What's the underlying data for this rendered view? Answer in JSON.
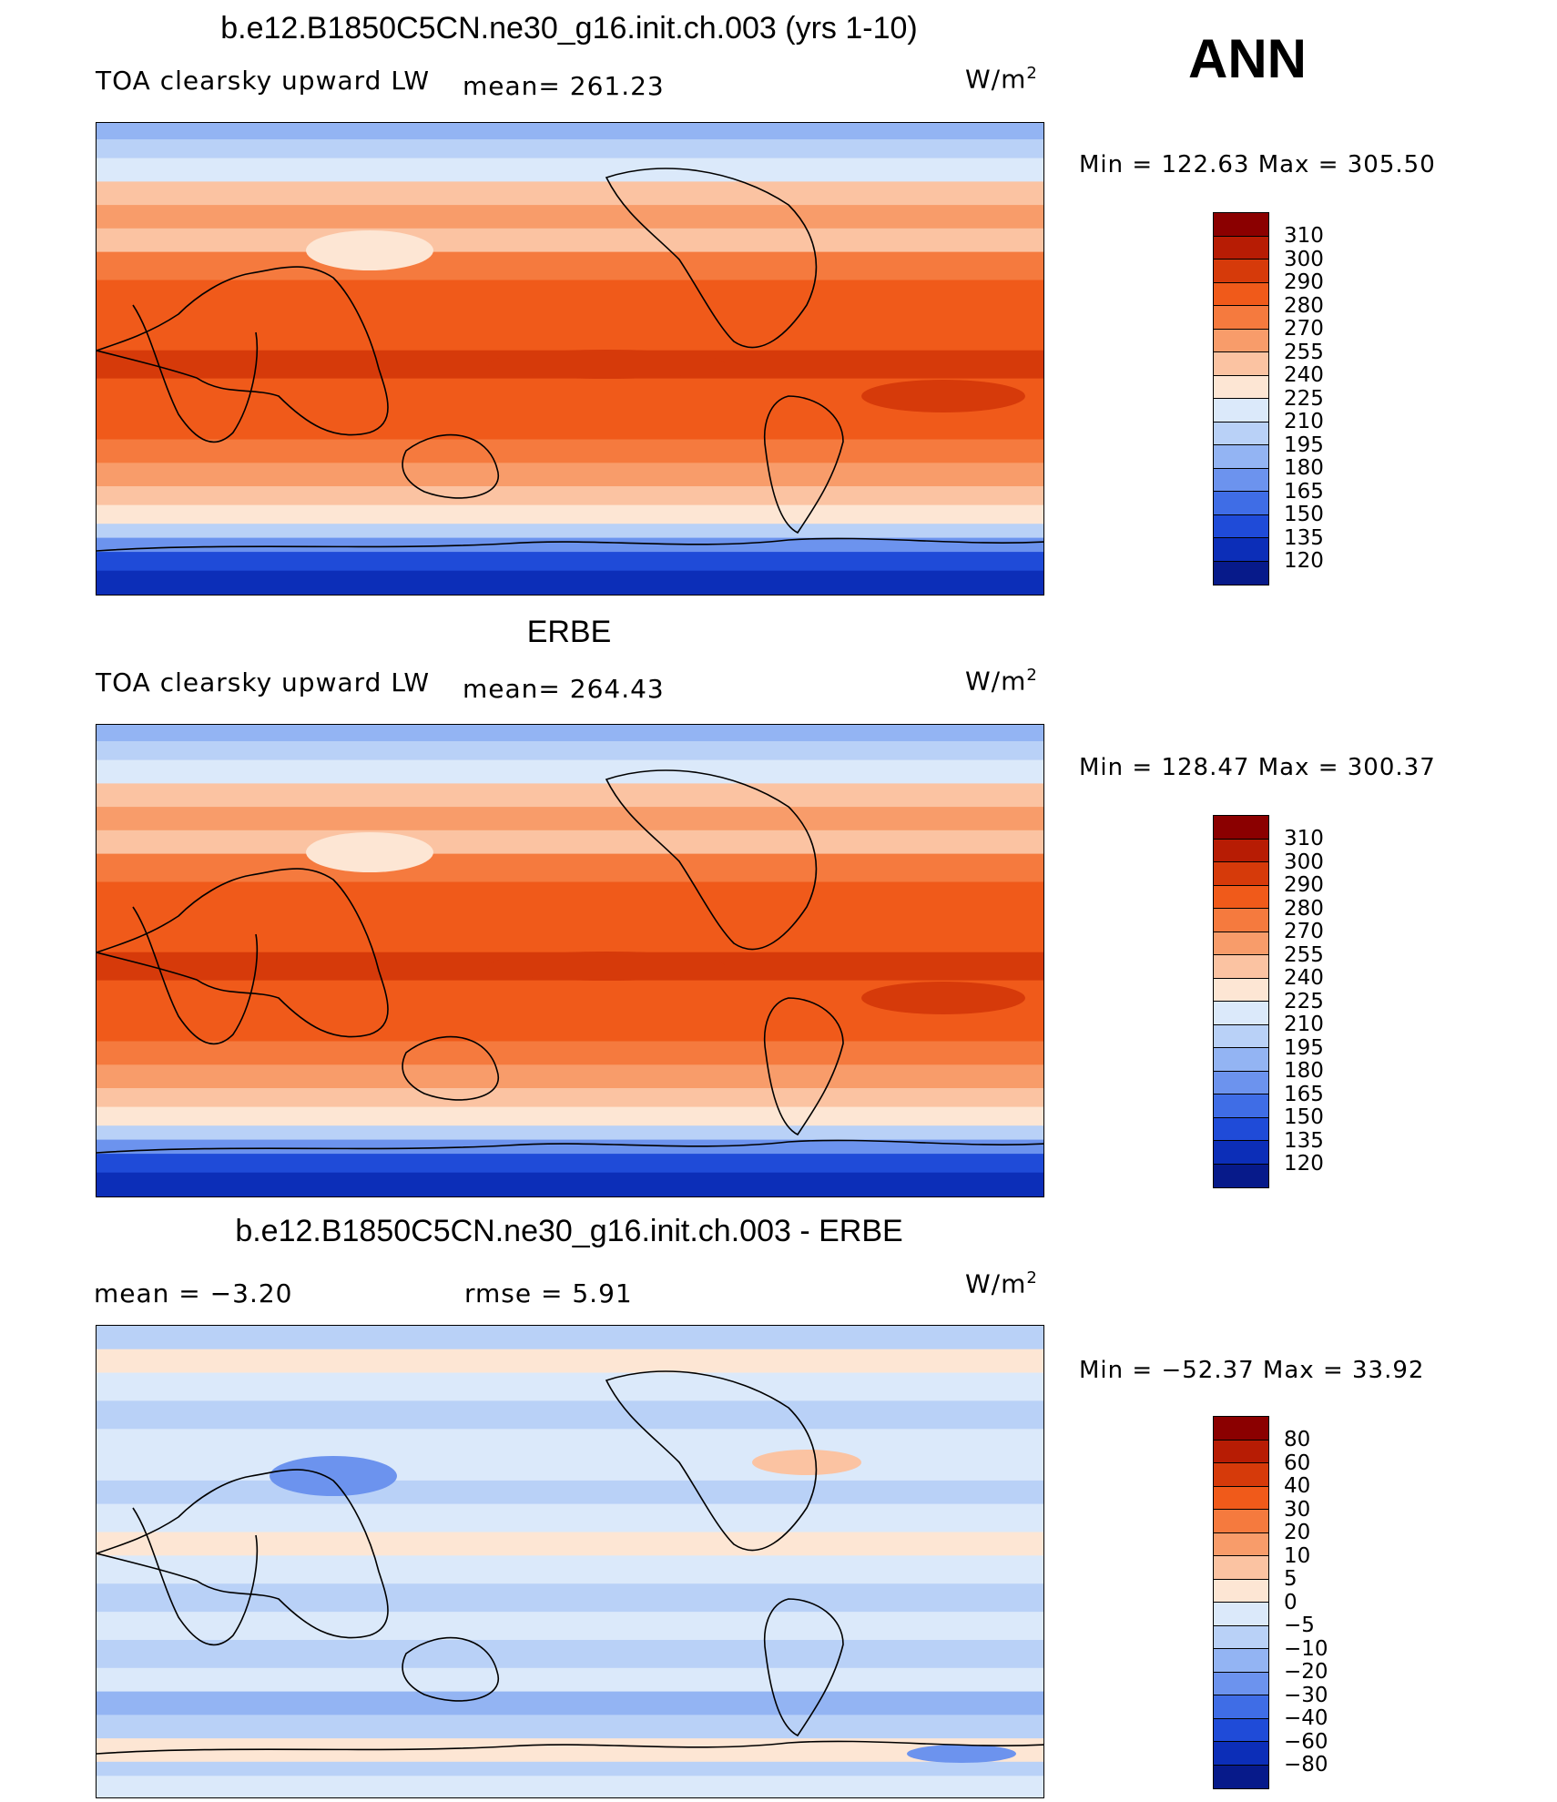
{
  "season_label": "ANN",
  "unit_base": "W/m",
  "unit_exp": "2",
  "panels": [
    {
      "title": "b.e12.B1850C5CN.ne30_g16.init.ch.003 (yrs 1-10)",
      "left_label": "TOA clearsky upward LW",
      "stat_label": "mean= 261.23",
      "minmax": "Min  =  122.63  Max  =  305.50",
      "kind": "abs",
      "levels": [
        "310",
        "300",
        "290",
        "280",
        "270",
        "255",
        "240",
        "225",
        "210",
        "195",
        "180",
        "165",
        "150",
        "135",
        "120"
      ],
      "colors": [
        "#8b0000",
        "#b71c04",
        "#d63a0a",
        "#f05a1a",
        "#f57a3e",
        "#f89c6a",
        "#fbc3a2",
        "#fde6d4",
        "#dbe9fa",
        "#b9d1f7",
        "#93b4f3",
        "#6c93ee",
        "#3f6de6",
        "#1f4bd8",
        "#0c2eb8",
        "#071a8a"
      ]
    },
    {
      "title": "ERBE",
      "left_label": "TOA clearsky upward LW",
      "stat_label": "mean= 264.43",
      "minmax": "Min  =  128.47  Max  =  300.37",
      "kind": "abs",
      "levels": [
        "310",
        "300",
        "290",
        "280",
        "270",
        "255",
        "240",
        "225",
        "210",
        "195",
        "180",
        "165",
        "150",
        "135",
        "120"
      ],
      "colors": [
        "#8b0000",
        "#b71c04",
        "#d63a0a",
        "#f05a1a",
        "#f57a3e",
        "#f89c6a",
        "#fbc3a2",
        "#fde6d4",
        "#dbe9fa",
        "#b9d1f7",
        "#93b4f3",
        "#6c93ee",
        "#3f6de6",
        "#1f4bd8",
        "#0c2eb8",
        "#071a8a"
      ]
    },
    {
      "title": "b.e12.B1850C5CN.ne30_g16.init.ch.003 - ERBE",
      "left_label": "mean  =    −3.20",
      "stat_label": "rmse  =     5.91",
      "minmax": "Min  =  −52.37  Max  =    33.92",
      "kind": "diff",
      "levels": [
        "80",
        "60",
        "40",
        "30",
        "20",
        "10",
        "5",
        "0",
        "−5",
        "−10",
        "−20",
        "−30",
        "−40",
        "−60",
        "−80"
      ],
      "colors": [
        "#8b0000",
        "#b71c04",
        "#d63a0a",
        "#f05a1a",
        "#f57a3e",
        "#f89c6a",
        "#fbc3a2",
        "#fde6d4",
        "#dbe9fa",
        "#b9d1f7",
        "#93b4f3",
        "#6c93ee",
        "#3f6de6",
        "#1f4bd8",
        "#0c2eb8",
        "#071a8a"
      ]
    }
  ]
}
